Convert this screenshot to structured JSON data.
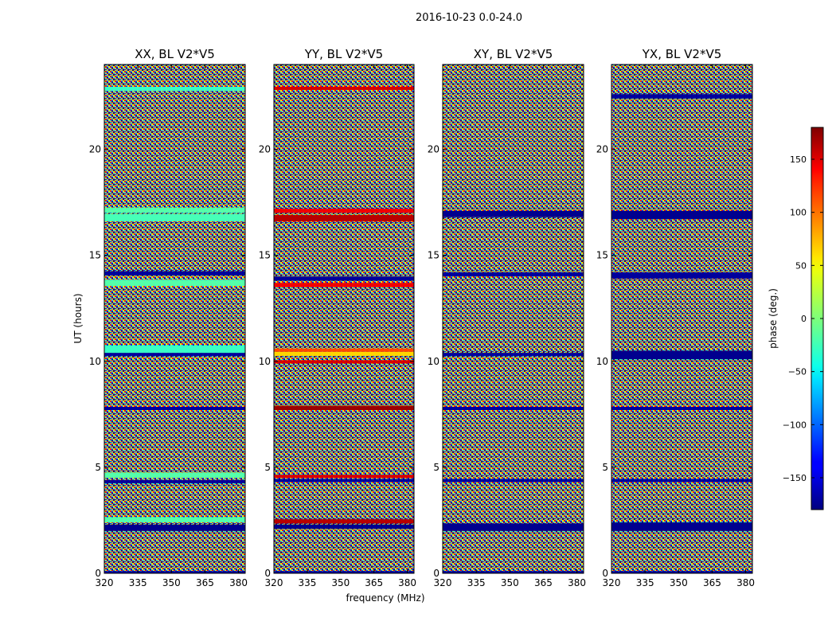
{
  "chart_data": {
    "type": "heatmap",
    "suptitle": "2016-10-23 0.0-24.0",
    "xlabel": "frequency (MHz)",
    "ylabel": "UT (hours)",
    "xlim": [
      320,
      383
    ],
    "ylim": [
      0,
      24
    ],
    "xticks": [
      320,
      335,
      350,
      365,
      380
    ],
    "yticks": [
      0,
      5,
      10,
      15,
      20
    ],
    "colormap": "jet",
    "colorbar": {
      "label": "phase (deg.)",
      "range": [
        -180,
        180
      ],
      "ticks": [
        -150,
        -100,
        -50,
        0,
        50,
        100,
        150
      ],
      "tick_labels": [
        "−150",
        "−100",
        "−50",
        "0",
        "50",
        "100",
        "150"
      ]
    },
    "panels": [
      {
        "title": "XX, BL V2*V5",
        "bands": [
          {
            "t0": 0.0,
            "t1": 0.1,
            "phase": -170
          },
          {
            "t0": 2.0,
            "t1": 2.3,
            "phase": -175
          },
          {
            "t0": 2.4,
            "t1": 2.65,
            "phase": -15
          },
          {
            "t0": 4.25,
            "t1": 4.4,
            "phase": -170
          },
          {
            "t0": 4.5,
            "t1": 4.75,
            "phase": -15
          },
          {
            "t0": 7.7,
            "t1": 7.85,
            "phase": -170
          },
          {
            "t0": 10.25,
            "t1": 10.4,
            "phase": -170
          },
          {
            "t0": 10.4,
            "t1": 10.75,
            "phase": -25
          },
          {
            "t0": 13.55,
            "t1": 13.85,
            "phase": -15
          },
          {
            "t0": 14.05,
            "t1": 14.25,
            "phase": -170
          },
          {
            "t0": 16.6,
            "t1": 16.95,
            "phase": -20
          },
          {
            "t0": 17.0,
            "t1": 17.25,
            "phase": -15
          },
          {
            "t0": 22.75,
            "t1": 22.95,
            "phase": -25
          }
        ]
      },
      {
        "title": "YY, BL V2*V5",
        "bands": [
          {
            "t0": 0.0,
            "t1": 0.1,
            "phase": -170
          },
          {
            "t0": 2.1,
            "t1": 2.3,
            "phase": -175
          },
          {
            "t0": 2.35,
            "t1": 2.55,
            "phase": 160
          },
          {
            "t0": 4.3,
            "t1": 4.45,
            "phase": -170
          },
          {
            "t0": 4.5,
            "t1": 4.65,
            "phase": 150
          },
          {
            "t0": 7.7,
            "t1": 7.9,
            "phase": 170
          },
          {
            "t0": 9.9,
            "t1": 10.05,
            "phase": 150
          },
          {
            "t0": 10.25,
            "t1": 10.45,
            "phase": 60
          },
          {
            "t0": 10.45,
            "t1": 10.6,
            "phase": 110
          },
          {
            "t0": 13.5,
            "t1": 13.7,
            "phase": 140
          },
          {
            "t0": 13.8,
            "t1": 14.0,
            "phase": -170
          },
          {
            "t0": 16.6,
            "t1": 16.9,
            "phase": 160
          },
          {
            "t0": 17.0,
            "t1": 17.2,
            "phase": 140
          },
          {
            "t0": 22.8,
            "t1": 22.95,
            "phase": 150
          }
        ]
      },
      {
        "title": "XY, BL V2*V5",
        "bands": [
          {
            "t0": 0.0,
            "t1": 0.1,
            "phase": -170
          },
          {
            "t0": 2.0,
            "t1": 2.35,
            "phase": -175
          },
          {
            "t0": 4.3,
            "t1": 4.45,
            "phase": -170
          },
          {
            "t0": 7.7,
            "t1": 7.85,
            "phase": -170
          },
          {
            "t0": 10.25,
            "t1": 10.4,
            "phase": -170
          },
          {
            "t0": 14.0,
            "t1": 14.2,
            "phase": -170
          },
          {
            "t0": 16.8,
            "t1": 17.1,
            "phase": -175
          }
        ]
      },
      {
        "title": "YX, BL V2*V5",
        "bands": [
          {
            "t0": 0.0,
            "t1": 0.1,
            "phase": -170
          },
          {
            "t0": 2.0,
            "t1": 2.4,
            "phase": -175
          },
          {
            "t0": 4.3,
            "t1": 4.45,
            "phase": -170
          },
          {
            "t0": 7.7,
            "t1": 7.85,
            "phase": -170
          },
          {
            "t0": 10.1,
            "t1": 10.5,
            "phase": -175
          },
          {
            "t0": 13.9,
            "t1": 14.2,
            "phase": -170
          },
          {
            "t0": 16.7,
            "t1": 17.1,
            "phase": -175
          },
          {
            "t0": 22.4,
            "t1": 22.6,
            "phase": -170
          }
        ]
      }
    ]
  }
}
